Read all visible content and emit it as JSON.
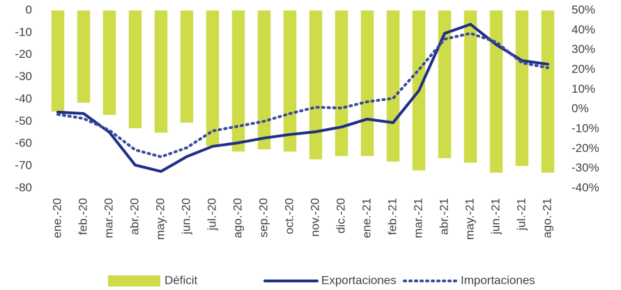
{
  "chart_data": {
    "type": "bar",
    "categories": [
      "ene.-20",
      "feb.-20",
      "mar.-20",
      "abr.-20",
      "may.-20",
      "jun.-20",
      "jul.-20",
      "ago.-20",
      "sep.-20",
      "oct.-20",
      "nov.-20",
      "dic.-20",
      "ene.-21",
      "feb.-21",
      "mar.-21",
      "abr.-21",
      "may.-21",
      "jun.-21",
      "jul.-21",
      "ago.-21"
    ],
    "series": [
      {
        "name": "Déficit",
        "type": "bar",
        "color": "#cfdc4a",
        "axis": "y",
        "values": [
          -45.5,
          -41.5,
          -47,
          -53,
          -55,
          -50.5,
          -61,
          -63.5,
          -62.5,
          -63.5,
          -67,
          -65.5,
          -65.5,
          -68,
          -72,
          -66.5,
          -68.5,
          -73,
          -70,
          -73
        ]
      },
      {
        "name": "Exportaciones",
        "type": "line",
        "color": "#1f2f86",
        "axis": "y2",
        "dash": "solid",
        "values": [
          -1.5,
          -2.2,
          -11.7,
          -28.3,
          -31.5,
          -24,
          -18.8,
          -17,
          -14.6,
          -12.8,
          -11.4,
          -9,
          -5,
          -6.8,
          9.4,
          38.4,
          43,
          32.7,
          24.6,
          22.8
        ]
      },
      {
        "name": "Importaciones",
        "type": "line",
        "color": "#3b4a9c",
        "axis": "y2",
        "dash": "dotted",
        "values": [
          -2.6,
          -4.7,
          -10.7,
          -20.6,
          -24.1,
          -19.5,
          -11,
          -8.6,
          -6.1,
          -2.2,
          1,
          0.6,
          3.8,
          5.5,
          20,
          35.5,
          38.4,
          34,
          23.5,
          21
        ]
      }
    ],
    "ylim": [
      -80,
      0
    ],
    "yticks": [
      0,
      -10,
      -20,
      -30,
      -40,
      -50,
      -60,
      -70,
      -80
    ],
    "y2lim": [
      -40,
      50
    ],
    "y2ticks": [
      {
        "value": 50,
        "label": "50%"
      },
      {
        "value": 40,
        "label": "40%"
      },
      {
        "value": 30,
        "label": "30%"
      },
      {
        "value": 20,
        "label": "20%"
      },
      {
        "value": 10,
        "label": "10%"
      },
      {
        "value": 0,
        "label": "0%"
      },
      {
        "value": -10,
        "label": "-10%"
      },
      {
        "value": -20,
        "label": "-20%"
      },
      {
        "value": -30,
        "label": "-30%"
      },
      {
        "value": -40,
        "label": "-40%"
      }
    ],
    "grid": false,
    "legend": "bottom"
  }
}
